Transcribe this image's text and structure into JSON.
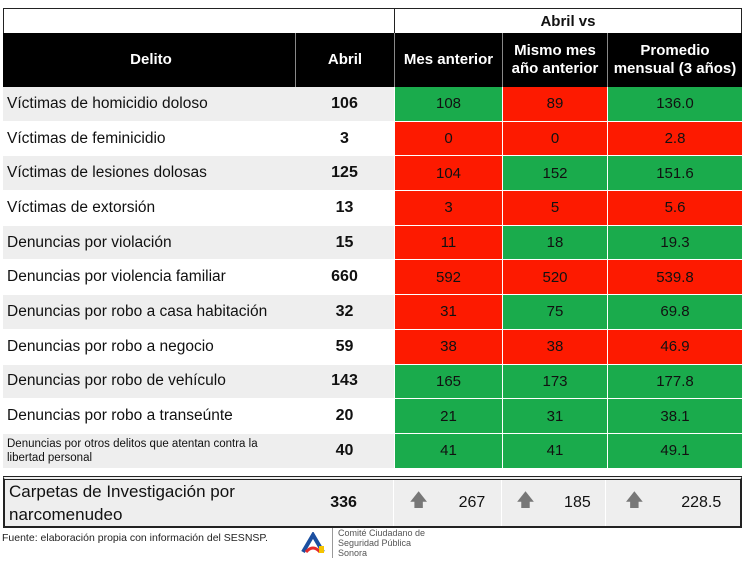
{
  "header": {
    "group": "Abril vs",
    "cols": [
      "Delito",
      "Abril",
      "Mes anterior",
      "Mismo mes año anterior",
      "Promedio mensual (3 años)"
    ]
  },
  "colors": {
    "green": "#1aab4c",
    "red": "#fd1a00"
  },
  "rows": [
    {
      "delito": "Víctimas de homicidio doloso",
      "abril": "106",
      "mes": "108",
      "mismo": "89",
      "prom": "136.0",
      "c": [
        "g",
        "r",
        "g"
      ]
    },
    {
      "delito": "Víctimas de feminicidio",
      "abril": "3",
      "mes": "0",
      "mismo": "0",
      "prom": "2.8",
      "c": [
        "r",
        "r",
        "r"
      ]
    },
    {
      "delito": "Víctimas de lesiones dolosas",
      "abril": "125",
      "mes": "104",
      "mismo": "152",
      "prom": "151.6",
      "c": [
        "r",
        "g",
        "g"
      ]
    },
    {
      "delito": "Víctimas de extorsión",
      "abril": "13",
      "mes": "3",
      "mismo": "5",
      "prom": "5.6",
      "c": [
        "r",
        "r",
        "r"
      ]
    },
    {
      "delito": "Denuncias por violación",
      "abril": "15",
      "mes": "11",
      "mismo": "18",
      "prom": "19.3",
      "c": [
        "r",
        "g",
        "g"
      ]
    },
    {
      "delito": "Denuncias por violencia familiar",
      "abril": "660",
      "mes": "592",
      "mismo": "520",
      "prom": "539.8",
      "c": [
        "r",
        "r",
        "r"
      ]
    },
    {
      "delito": "Denuncias por robo a casa habitación",
      "abril": "32",
      "mes": "31",
      "mismo": "75",
      "prom": "69.8",
      "c": [
        "r",
        "g",
        "g"
      ]
    },
    {
      "delito": "Denuncias por robo a negocio",
      "abril": "59",
      "mes": "38",
      "mismo": "38",
      "prom": "46.9",
      "c": [
        "r",
        "r",
        "r"
      ]
    },
    {
      "delito": "Denuncias por robo de vehículo",
      "abril": "143",
      "mes": "165",
      "mismo": "173",
      "prom": "177.8",
      "c": [
        "g",
        "g",
        "g"
      ]
    },
    {
      "delito": "Denuncias por robo a transeúnte",
      "abril": "20",
      "mes": "21",
      "mismo": "31",
      "prom": "38.1",
      "c": [
        "g",
        "g",
        "g"
      ]
    },
    {
      "delito": "Denuncias por otros delitos que atentan contra la libertad personal",
      "abril": "40",
      "mes": "41",
      "mismo": "41",
      "prom": "49.1",
      "c": [
        "g",
        "g",
        "g"
      ]
    }
  ],
  "last": {
    "delito": "Carpetas de Investigación por narcomenudeo",
    "abril": "336",
    "mes": "267",
    "mismo": "185",
    "prom": "228.5",
    "icon": "arrow-up-icon"
  },
  "footer": {
    "source": "Fuente: elaboración propia con información del SESNSP.",
    "logo_text": "Comité Ciudadano de Seguridad Pública Sonora"
  }
}
